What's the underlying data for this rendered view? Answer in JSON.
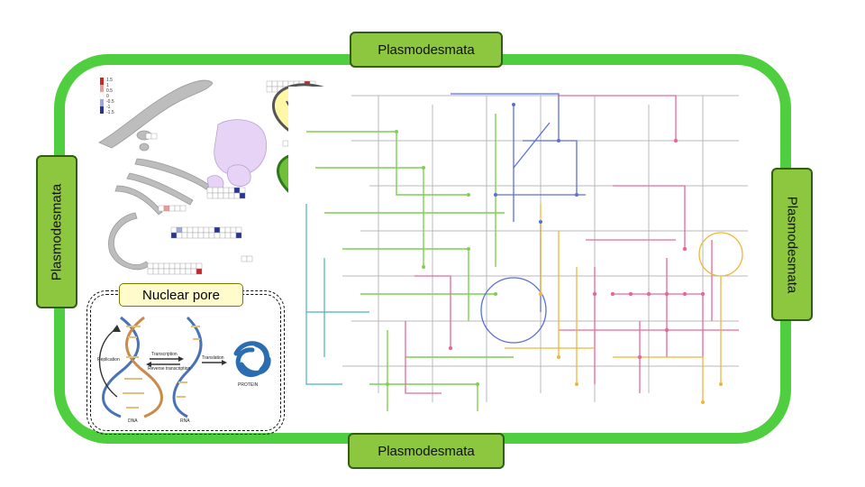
{
  "plasmodesmata": {
    "top": "Plasmodesmata",
    "bottom": "Plasmodesmata",
    "left": "Plasmodesmata",
    "right": "Plasmodesmata"
  },
  "nuclear_pore": {
    "label": "Nuclear pore",
    "dna": "DNA",
    "rna": "RNA",
    "protein": "PROTEIN",
    "replication": "Replication",
    "transcription": "Transcription",
    "reverse_transcription": "Reverse transcription",
    "translation": "Translation"
  },
  "heat_legend": {
    "ticks": [
      "1.5",
      "1",
      "0.5",
      "0",
      "-0.5",
      "-1",
      "-1.5"
    ]
  },
  "colors": {
    "cell_wall": "#4fce3f",
    "label_fill": "#8dc63f",
    "mitochondrion": "#fdf7a6",
    "chloroplast": "#6fbf3a",
    "vacuole": "#e7d3f5",
    "nucleolus": "#6e6a32",
    "er_gray": "#bdbdbd",
    "pathway_green": "#7fcf50",
    "pathway_blue": "#5a6fd8",
    "pathway_pink": "#e7679a",
    "pathway_orange": "#f0b53a",
    "pathway_teal": "#4bb3b3",
    "pathway_gray": "#b8b8b8"
  }
}
